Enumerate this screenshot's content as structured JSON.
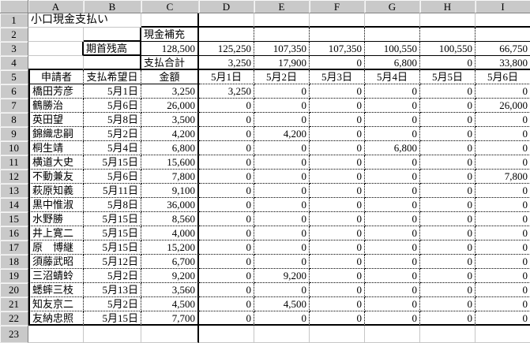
{
  "sheet": {
    "title": "小口現金支払い",
    "column_headers": [
      "A",
      "B",
      "C",
      "D",
      "E",
      "F",
      "G",
      "H",
      "I"
    ],
    "row_numbers": [
      "1",
      "2",
      "3",
      "4",
      "5",
      "6",
      "7",
      "8",
      "9",
      "10",
      "11",
      "12",
      "13",
      "14",
      "15",
      "16",
      "17",
      "18",
      "19",
      "20",
      "21",
      "22",
      "23"
    ],
    "rows": [
      [
        "小口現金支払い",
        "",
        "",
        "",
        "",
        "",
        "",
        "",
        ""
      ],
      [
        "",
        "",
        "現金補充",
        "",
        "",
        "",
        "",
        "",
        ""
      ],
      [
        "",
        "期首残高",
        "128,500",
        "125,250",
        "107,350",
        "107,350",
        "100,550",
        "100,550",
        "66,750"
      ],
      [
        "",
        "",
        "支払合計",
        "3,250",
        "17,900",
        "0",
        "6,800",
        "0",
        "33,800"
      ],
      [
        "申請者",
        "支払希望日",
        "金額",
        "5月1日",
        "5月2日",
        "5月3日",
        "5月4日",
        "5月5日",
        "5月6日"
      ],
      [
        "橋田芳彦",
        "5月1日",
        "3,250",
        "3,250",
        "0",
        "0",
        "0",
        "0",
        "0"
      ],
      [
        "鶴勝治",
        "5月6日",
        "26,000",
        "0",
        "0",
        "0",
        "0",
        "0",
        "26,000"
      ],
      [
        "英田望",
        "5月8日",
        "3,500",
        "0",
        "0",
        "0",
        "0",
        "0",
        "0"
      ],
      [
        "錦織忠嗣",
        "5月2日",
        "4,200",
        "0",
        "4,200",
        "0",
        "0",
        "0",
        "0"
      ],
      [
        "桐生靖",
        "5月4日",
        "6,800",
        "0",
        "0",
        "0",
        "6,800",
        "0",
        "0"
      ],
      [
        "横道大史",
        "5月15日",
        "15,600",
        "0",
        "0",
        "0",
        "0",
        "0",
        "0"
      ],
      [
        "不動兼友",
        "5月6日",
        "7,800",
        "0",
        "0",
        "0",
        "0",
        "0",
        "7,800"
      ],
      [
        "萩原知義",
        "5月11日",
        "9,100",
        "0",
        "0",
        "0",
        "0",
        "0",
        "0"
      ],
      [
        "黒中惟淑",
        "5月8日",
        "36,000",
        "0",
        "0",
        "0",
        "0",
        "0",
        "0"
      ],
      [
        "水野勝",
        "5月15日",
        "8,560",
        "0",
        "0",
        "0",
        "0",
        "0",
        "0"
      ],
      [
        "井上寛二",
        "5月15日",
        "4,000",
        "0",
        "0",
        "0",
        "0",
        "0",
        "0"
      ],
      [
        "原　博継",
        "5月15日",
        "15,200",
        "0",
        "0",
        "0",
        "0",
        "0",
        "0"
      ],
      [
        "須藤武昭",
        "5月12日",
        "6,700",
        "0",
        "0",
        "0",
        "0",
        "0",
        "0"
      ],
      [
        "三沼蜻蛉",
        "5月2日",
        "9,200",
        "0",
        "9,200",
        "0",
        "0",
        "0",
        "0"
      ],
      [
        "蟋蟀三枝",
        "5月13日",
        "3,560",
        "0",
        "0",
        "0",
        "0",
        "0",
        "0"
      ],
      [
        "知友京二",
        "5月2日",
        "4,500",
        "0",
        "4,500",
        "0",
        "0",
        "0",
        "0"
      ],
      [
        "友納忠照",
        "5月15日",
        "7,700",
        "0",
        "0",
        "0",
        "0",
        "0",
        "0"
      ],
      [
        "",
        "",
        "",
        "",
        "",
        "",
        "",
        "",
        ""
      ]
    ]
  },
  "colors": {
    "cell_background": "#ffffff",
    "grid_line": "#c6c6c6",
    "table_border": "#000000",
    "gutter_background": "#c9c9c9",
    "text": "#000000"
  }
}
